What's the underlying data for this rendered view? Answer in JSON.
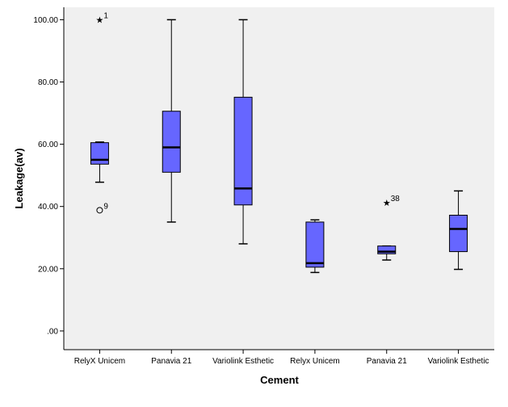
{
  "chart_data": {
    "type": "boxplot",
    "xlabel": "Cement",
    "ylabel": "Leakage(av)",
    "ylim": [
      -6,
      104
    ],
    "yticks": [
      0,
      20,
      40,
      60,
      80,
      100
    ],
    "ytick_labels": [
      ".00",
      "20.00",
      "40.00",
      "60.00",
      "80.00",
      "100.00"
    ],
    "grid": false,
    "colors": {
      "plot_bg": "#f0f0f0",
      "box_fill": "#6666ff",
      "box_stroke": "#000000"
    },
    "categories": [
      "RelyX Unicem",
      "Panavia 21",
      "Variolink Esthetic",
      "Relyx Unicem",
      "Panavia 21",
      "Variolink Esthetic"
    ],
    "boxes": [
      {
        "whisker_low": 47.8,
        "q1": 53.6,
        "median": 55.0,
        "q3": 60.5,
        "whisker_high": 60.7,
        "outliers": [
          {
            "value": 38.8,
            "marker": "circle",
            "label": "9"
          },
          {
            "value": 100.0,
            "marker": "star",
            "label": "1"
          }
        ]
      },
      {
        "whisker_low": 35.0,
        "q1": 51.0,
        "median": 59.0,
        "q3": 70.6,
        "whisker_high": 100.0,
        "outliers": []
      },
      {
        "whisker_low": 28.0,
        "q1": 40.5,
        "median": 45.8,
        "q3": 75.1,
        "whisker_high": 100.0,
        "outliers": []
      },
      {
        "whisker_low": 18.8,
        "q1": 20.5,
        "median": 21.8,
        "q3": 35.0,
        "whisker_high": 35.7,
        "outliers": []
      },
      {
        "whisker_low": 22.8,
        "q1": 24.8,
        "median": 25.5,
        "q3": 27.3,
        "whisker_high": 27.3,
        "outliers": [
          {
            "value": 41.2,
            "marker": "star",
            "label": "38"
          }
        ]
      },
      {
        "whisker_low": 19.8,
        "q1": 25.5,
        "median": 32.8,
        "q3": 37.2,
        "whisker_high": 45.0,
        "outliers": []
      }
    ]
  }
}
